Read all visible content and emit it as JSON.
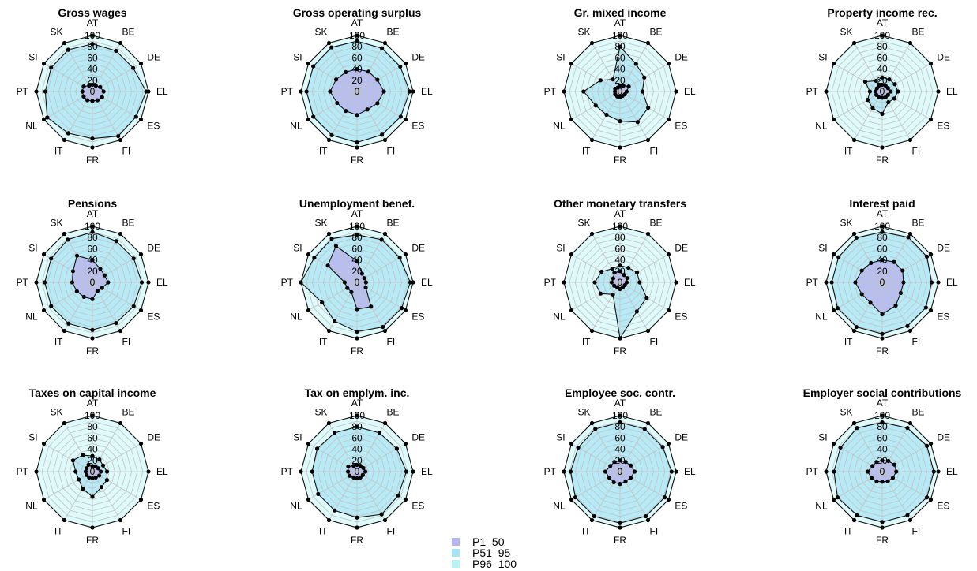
{
  "chart_data": {
    "type": "radar",
    "axes": [
      "AT",
      "BE",
      "DE",
      "EL",
      "ES",
      "FI",
      "FR",
      "IT",
      "NL",
      "PT",
      "SI",
      "SK"
    ],
    "rlim": [
      0,
      100
    ],
    "ticks": [
      "0",
      "20",
      "40",
      "60",
      "80",
      "100"
    ],
    "legend": {
      "placement": "bottom-center",
      "entries": [
        {
          "label": "P1–50",
          "color": "#b6b6f2"
        },
        {
          "label": "P51–95",
          "color": "#a9e4f5"
        },
        {
          "label": "P96–100",
          "color": "#b5f5f3"
        }
      ]
    },
    "panels": [
      {
        "title": "Gross wages",
        "series": [
          {
            "name": "P1–50",
            "values": [
              12,
              12,
              16,
              20,
              20,
              18,
              17,
              18,
              18,
              18,
              18,
              12
            ]
          },
          {
            "name": "P51–95",
            "values": [
              85,
              84,
              84,
              96,
              90,
              92,
              84,
              86,
              93,
              84,
              85,
              86
            ]
          },
          {
            "name": "P96–100",
            "values": [
              100,
              100,
              100,
              100,
              100,
              100,
              100,
              100,
              100,
              100,
              100,
              100
            ]
          }
        ]
      },
      {
        "title": "Gross operating surplus",
        "series": [
          {
            "name": "P1–50",
            "values": [
              40,
              41,
              42,
              48,
              42,
              37,
              42,
              40,
              41,
              48,
              43,
              40
            ]
          },
          {
            "name": "P51–95",
            "values": [
              90,
              89,
              89,
              94,
              90,
              89,
              91,
              90,
              90,
              90,
              90,
              91
            ]
          },
          {
            "name": "P96–100",
            "values": [
              100,
              100,
              100,
              100,
              100,
              100,
              100,
              100,
              100,
              100,
              100,
              100
            ]
          }
        ]
      },
      {
        "title": "Gr. mixed income",
        "series": [
          {
            "name": "P1–50",
            "values": [
              10,
              12,
              18,
              12,
              10,
              9,
              10,
              10,
              10,
              9,
              10,
              8
            ]
          },
          {
            "name": "P51–95",
            "values": [
              80,
              57,
              50,
              40,
              58,
              63,
              53,
              48,
              50,
              65,
              40,
              25
            ]
          },
          {
            "name": "P96–100",
            "values": [
              100,
              100,
              100,
              100,
              100,
              100,
              100,
              100,
              100,
              100,
              100,
              100
            ]
          }
        ]
      },
      {
        "title": "Property income rec.",
        "series": [
          {
            "name": "P1–50",
            "values": [
              12,
              12,
              12,
              15,
              12,
              12,
              11,
              12,
              12,
              12,
              11,
              12
            ]
          },
          {
            "name": "P51–95",
            "values": [
              25,
              25,
              26,
              28,
              25,
              22,
              40,
              34,
              30,
              22,
              35,
              22
            ]
          },
          {
            "name": "P96–100",
            "values": [
              100,
              100,
              100,
              100,
              100,
              100,
              100,
              100,
              100,
              100,
              100,
              100
            ]
          }
        ]
      },
      {
        "title": "Pensions",
        "series": [
          {
            "name": "P1–50",
            "values": [
              40,
              28,
              25,
              28,
              20,
              18,
              30,
              30,
              32,
              36,
              40,
              55
            ]
          },
          {
            "name": "P51–95",
            "values": [
              90,
              85,
              85,
              88,
              85,
              84,
              85,
              85,
              85,
              85,
              85,
              88
            ]
          },
          {
            "name": "P96–100",
            "values": [
              100,
              100,
              100,
              100,
              100,
              100,
              100,
              100,
              100,
              100,
              100,
              100
            ]
          }
        ]
      },
      {
        "title": "Unemployment benef.",
        "series": [
          {
            "name": "P1–50",
            "values": [
              38,
              18,
              15,
              16,
              18,
              50,
              48,
              20,
              20,
              22,
              60,
              75
            ]
          },
          {
            "name": "P51–95",
            "values": [
              85,
              88,
              88,
              95,
              92,
              92,
              88,
              80,
              72,
              100,
              88,
              90
            ]
          },
          {
            "name": "P96–100",
            "values": [
              100,
              100,
              100,
              100,
              100,
              100,
              100,
              100,
              100,
              100,
              100,
              100
            ]
          }
        ]
      },
      {
        "title": "Other monetary transfers",
        "series": [
          {
            "name": "P1–50",
            "values": [
              20,
              15,
              15,
              12,
              10,
              10,
              12,
              10,
              12,
              15,
              14,
              20
            ]
          },
          {
            "name": "P51–95",
            "values": [
              30,
              30,
              35,
              35,
              55,
              60,
              100,
              25,
              40,
              45,
              38,
              28
            ]
          },
          {
            "name": "P96–100",
            "values": [
              100,
              100,
              100,
              100,
              100,
              100,
              100,
              100,
              100,
              100,
              100,
              100
            ]
          }
        ]
      },
      {
        "title": "Interest paid",
        "series": [
          {
            "name": "P1–50",
            "values": [
              40,
              42,
              42,
              38,
              38,
              48,
              57,
              42,
              42,
              48,
              42,
              40
            ]
          },
          {
            "name": "P51–95",
            "values": [
              90,
              93,
              92,
              88,
              90,
              90,
              92,
              92,
              92,
              90,
              90,
              92
            ]
          },
          {
            "name": "P96–100",
            "values": [
              100,
              100,
              100,
              100,
              100,
              100,
              100,
              100,
              100,
              100,
              100,
              100
            ]
          }
        ]
      },
      {
        "title": "Taxes on capital income",
        "series": [
          {
            "name": "P1–50",
            "values": [
              10,
              11,
              12,
              15,
              14,
              12,
              12,
              12,
              12,
              12,
              12,
              14
            ]
          },
          {
            "name": "P51–95",
            "values": [
              28,
              25,
              22,
              26,
              30,
              32,
              45,
              35,
              28,
              30,
              40,
              34
            ]
          },
          {
            "name": "P96–100",
            "values": [
              100,
              100,
              100,
              100,
              100,
              100,
              100,
              100,
              100,
              100,
              100,
              100
            ]
          }
        ]
      },
      {
        "title": "Tax on emplym. inc.",
        "series": [
          {
            "name": "P1–50",
            "values": [
              12,
              12,
              13,
              15,
              12,
              12,
              12,
              12,
              15,
              16,
              18,
              12
            ]
          },
          {
            "name": "P51–95",
            "values": [
              80,
              80,
              82,
              88,
              85,
              88,
              82,
              80,
              80,
              80,
              82,
              80
            ]
          },
          {
            "name": "P96–100",
            "values": [
              100,
              100,
              100,
              100,
              100,
              100,
              100,
              100,
              100,
              100,
              100,
              100
            ]
          }
        ]
      },
      {
        "title": "Employee soc. contr.",
        "series": [
          {
            "name": "P1–50",
            "values": [
              20,
              20,
              22,
              26,
              22,
              20,
              22,
              22,
              22,
              26,
              20,
              20
            ]
          },
          {
            "name": "P51–95",
            "values": [
              88,
              88,
              88,
              92,
              92,
              92,
              92,
              92,
              92,
              88,
              86,
              88
            ]
          },
          {
            "name": "P96–100",
            "values": [
              100,
              100,
              100,
              100,
              100,
              100,
              100,
              100,
              100,
              100,
              100,
              100
            ]
          }
        ]
      },
      {
        "title": "Employer social contributions",
        "series": [
          {
            "name": "P1–50",
            "values": [
              20,
              22,
              25,
              25,
              22,
              20,
              18,
              20,
              22,
              26,
              20,
              20
            ]
          },
          {
            "name": "P51–95",
            "values": [
              88,
              90,
              92,
              92,
              92,
              90,
              90,
              90,
              92,
              86,
              86,
              90
            ]
          },
          {
            "name": "P96–100",
            "values": [
              100,
              100,
              100,
              100,
              100,
              100,
              100,
              100,
              100,
              100,
              100,
              100
            ]
          }
        ]
      }
    ]
  }
}
